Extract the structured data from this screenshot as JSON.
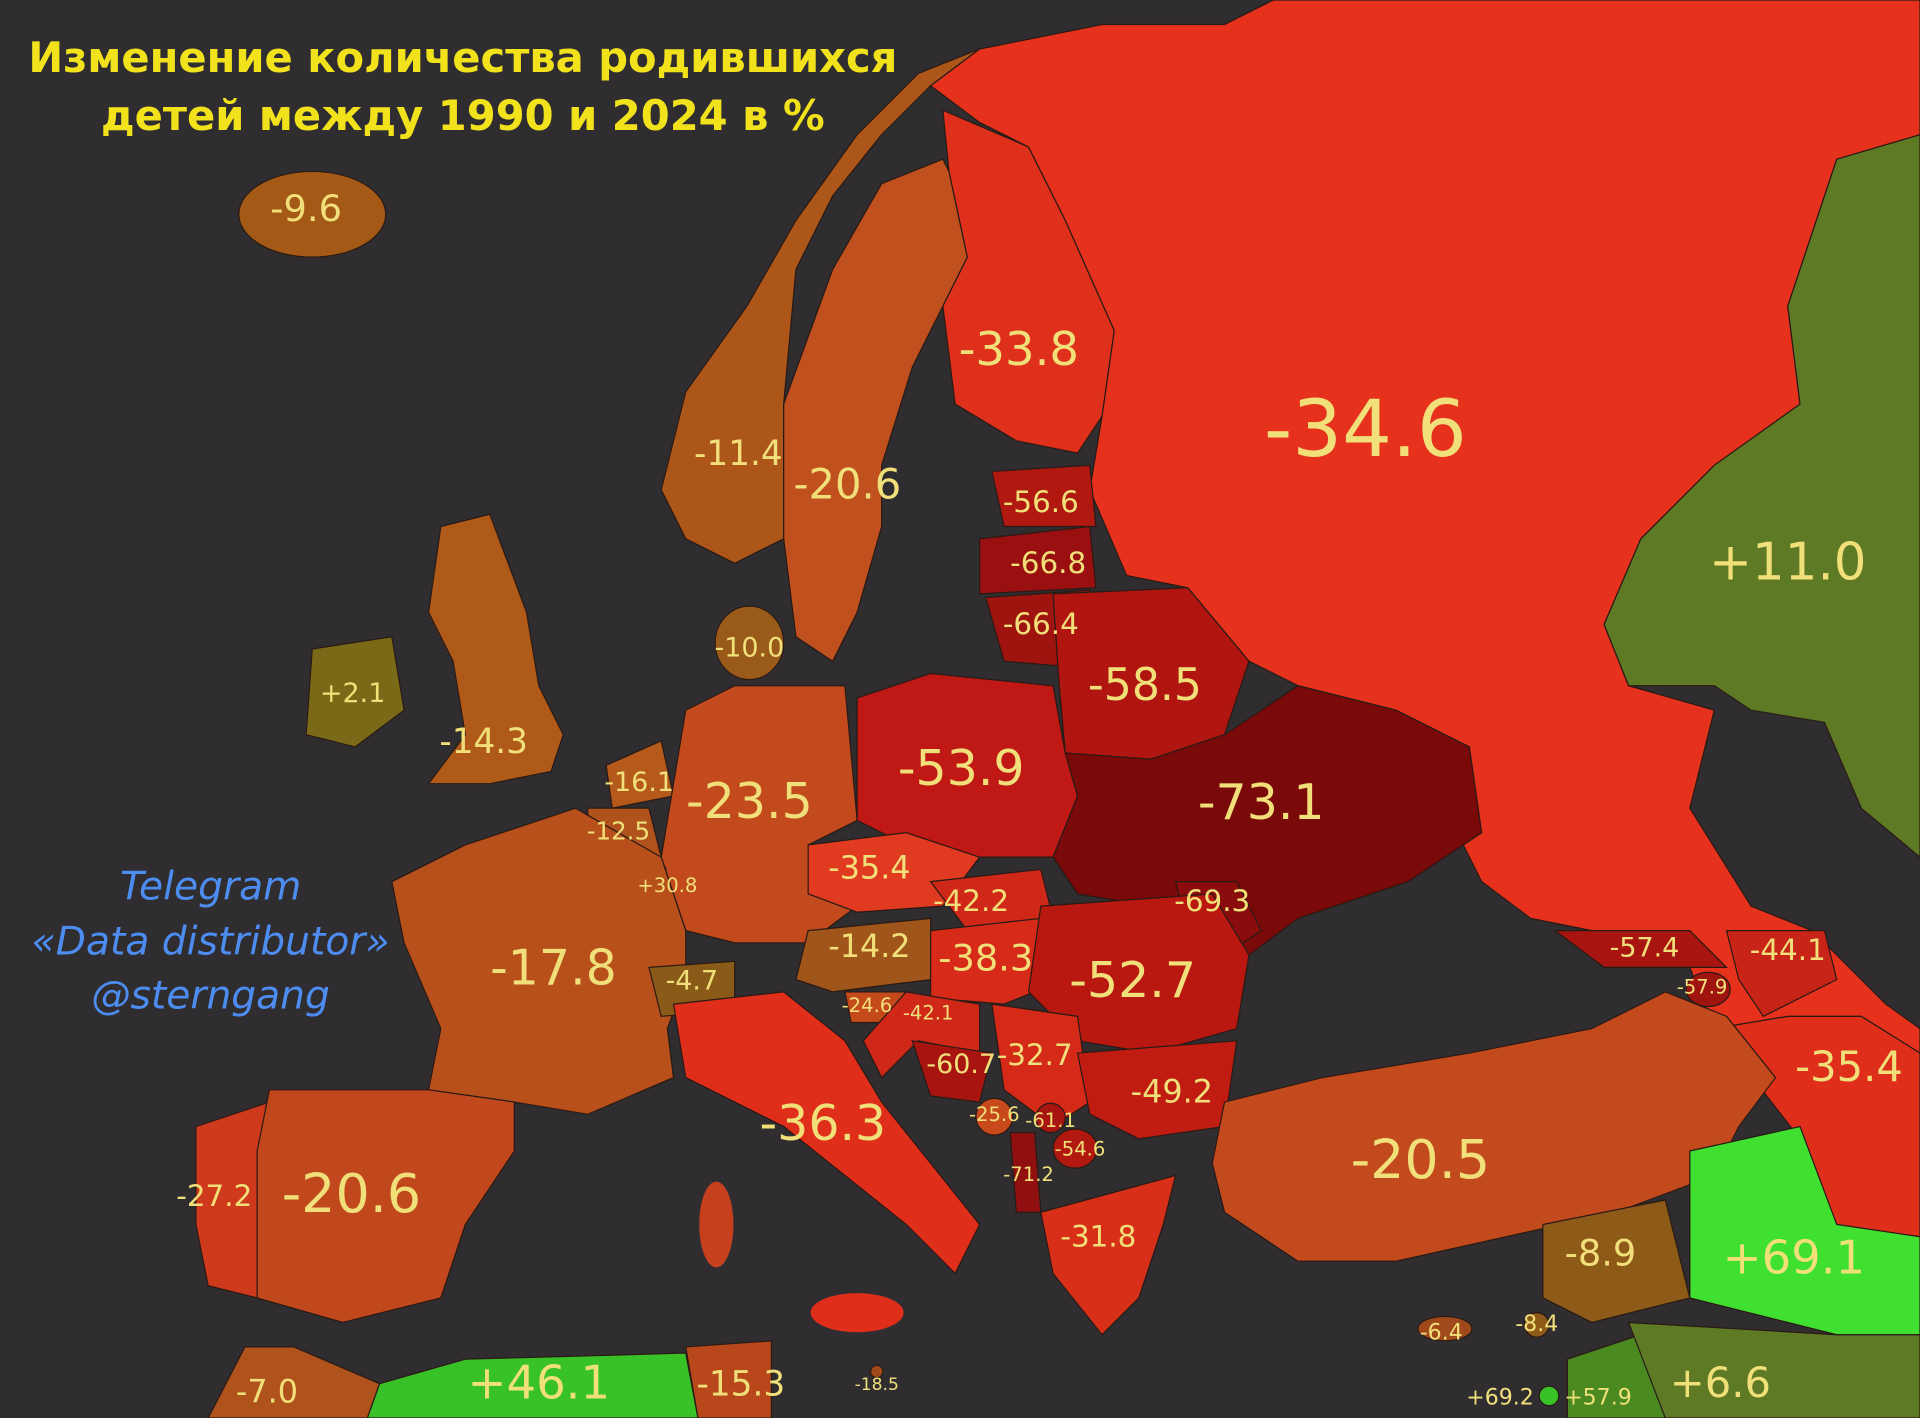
{
  "title": [
    "Изменение количества родившихся",
    "детей между 1990 и 2024 в %"
  ],
  "watermark": [
    "Telegram",
    "«Data distributor»",
    "@sterngang"
  ],
  "region_labels": [
    "-9.6",
    "-11.4",
    "-20.6",
    "-33.8",
    "-34.6",
    "-56.6",
    "-66.8",
    "-66.4",
    "-58.5",
    "+11.0",
    "-10.0",
    "+2.1",
    "-14.3",
    "-16.1",
    "-23.5",
    "-53.9",
    "-73.1",
    "-12.5",
    "+30.8",
    "-35.4",
    "-42.2",
    "-69.3",
    "-17.8",
    "-4.7",
    "-14.2",
    "-38.3",
    "-52.7",
    "-24.6",
    "-42.1",
    "-60.7",
    "-32.7",
    "-49.2",
    "-25.6",
    "-61.1",
    "-54.6",
    "-71.2",
    "-36.3",
    "-57.4",
    "-57.9",
    "-44.1",
    "-35.4",
    "-27.2",
    "-20.6",
    "-20.5",
    "-31.8",
    "-8.9",
    "+69.1",
    "-6.4",
    "-8.4",
    "-7.0",
    "+46.1",
    "-15.3",
    "-18.5",
    "+69.2",
    "+57.9",
    "+6.6"
  ]
}
